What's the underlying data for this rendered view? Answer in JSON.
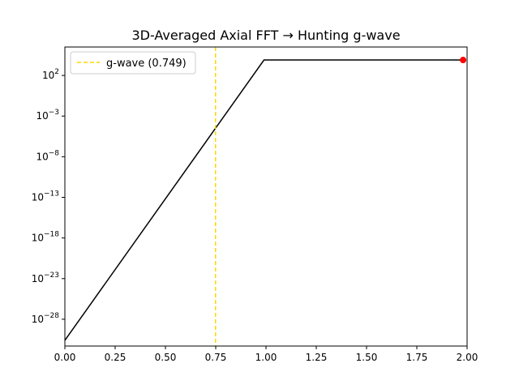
{
  "chart_data": {
    "type": "line",
    "title": "3D-Averaged Axial FFT → Hunting g-wave",
    "xlabel": "",
    "ylabel": "",
    "xlim": [
      0,
      2.0
    ],
    "yscale": "log",
    "ylim_log10": [
      -31.3,
      5.5
    ],
    "x_ticks": [
      "0.00",
      "0.25",
      "0.50",
      "0.75",
      "1.00",
      "1.25",
      "1.50",
      "1.75",
      "2.00"
    ],
    "y_ticks": [
      {
        "log10": 2,
        "base": "10",
        "exp": "2"
      },
      {
        "log10": -3,
        "base": "10",
        "exp": "−3"
      },
      {
        "log10": -8,
        "base": "10",
        "exp": "−8"
      },
      {
        "log10": -13,
        "base": "10",
        "exp": "−13"
      },
      {
        "log10": -18,
        "base": "10",
        "exp": "−18"
      },
      {
        "log10": -23,
        "base": "10",
        "exp": "−23"
      },
      {
        "log10": -28,
        "base": "10",
        "exp": "−28"
      }
    ],
    "grid": false,
    "legend_position": "top-left",
    "series": [
      {
        "name": "",
        "color": "#000000",
        "x": [
          0.0,
          0.99,
          1.98
        ],
        "y_log10": [
          -30.6,
          3.9,
          3.9
        ]
      }
    ],
    "vline": {
      "x": 0.749,
      "label": "g-wave (0.749)",
      "color": "#ffd700",
      "style": "dashed"
    },
    "marker": {
      "x": 1.98,
      "y_log10": 3.9,
      "color": "#ff0000"
    }
  }
}
